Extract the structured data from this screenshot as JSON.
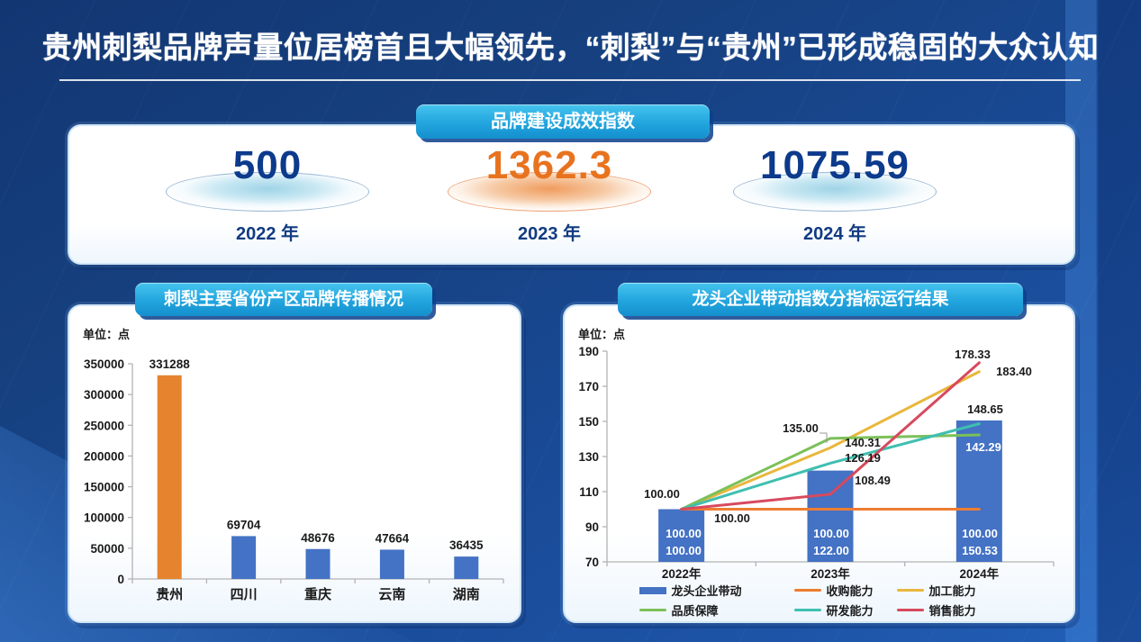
{
  "page": {
    "title": "贵州刺梨品牌声量位居榜首且大幅领先，“刺梨”与“贵州”已形成稳固的大众认知"
  },
  "index_card": {
    "badge": "品牌建设成效指数",
    "stats": [
      {
        "value": "500",
        "year": "2022 年",
        "theme": "blue"
      },
      {
        "value": "1362.3",
        "year": "2023 年",
        "theme": "orange"
      },
      {
        "value": "1075.59",
        "year": "2024 年",
        "theme": "blue"
      }
    ]
  },
  "left_chart": {
    "title": "刺梨主要省份产区品牌传播情况",
    "unit": "单位：点"
  },
  "right_chart": {
    "title": "龙头企业带动指数分指标运行结果",
    "unit": "单位：点"
  },
  "colors": {
    "background_navy": "#16407f",
    "badge_cyan": "#22a5de",
    "navy_text": "#0c3a8c",
    "orange_text": "#e8731f",
    "bar_blue": "#4472C4",
    "bar_orange": "#E5832F",
    "line_orange": "#ED7D31",
    "line_gold": "#E9B73C",
    "line_green": "#7CC05A",
    "line_teal": "#3FBFB0",
    "line_red": "#D8495D"
  },
  "chart_data": [
    {
      "type": "bar",
      "title": "刺梨主要省份产区品牌传播情况",
      "unit_label": "单位：点",
      "categories": [
        "贵州",
        "四川",
        "重庆",
        "云南",
        "湖南"
      ],
      "values": [
        331288,
        69704,
        48676,
        47664,
        36435
      ],
      "bar_colors": [
        "#E5832F",
        "#4472C4",
        "#4472C4",
        "#4472C4",
        "#4472C4"
      ],
      "ylim": [
        0,
        350000
      ],
      "yticks": [
        0,
        50000,
        100000,
        150000,
        200000,
        250000,
        300000,
        350000
      ],
      "grid": false,
      "legend": "none"
    },
    {
      "type": "combo-bar-line",
      "title": "龙头企业带动指数分指标运行结果",
      "unit_label": "单位：点",
      "categories": [
        "2022年",
        "2023年",
        "2024年"
      ],
      "bar_series": {
        "name": "龙头企业带动",
        "color": "#4472C4",
        "values": [
          100.0,
          122.0,
          150.53
        ]
      },
      "line_series": [
        {
          "name": "收购能力",
          "color": "#ED7D31",
          "values": [
            100.0,
            100.0,
            100.0
          ]
        },
        {
          "name": "加工能力",
          "color": "#E9B73C",
          "values": [
            100.0,
            135.0,
            178.33
          ]
        },
        {
          "name": "品质保障",
          "color": "#7CC05A",
          "values": [
            100.0,
            140.31,
            142.29
          ]
        },
        {
          "name": "研发能力",
          "color": "#3FBFB0",
          "values": [
            100.0,
            126.19,
            148.65
          ]
        },
        {
          "name": "销售能力",
          "color": "#D8495D",
          "values": [
            100.0,
            108.49,
            183.4
          ]
        }
      ],
      "ylim": [
        70,
        190
      ],
      "yticks": [
        70,
        90,
        110,
        130,
        150,
        170,
        190
      ],
      "grid": false,
      "legend_position": "bottom",
      "legend_rows": [
        [
          "龙头企业带动",
          "收购能力",
          "加工能力"
        ],
        [
          "品质保障",
          "研发能力",
          "销售能力"
        ]
      ]
    }
  ]
}
